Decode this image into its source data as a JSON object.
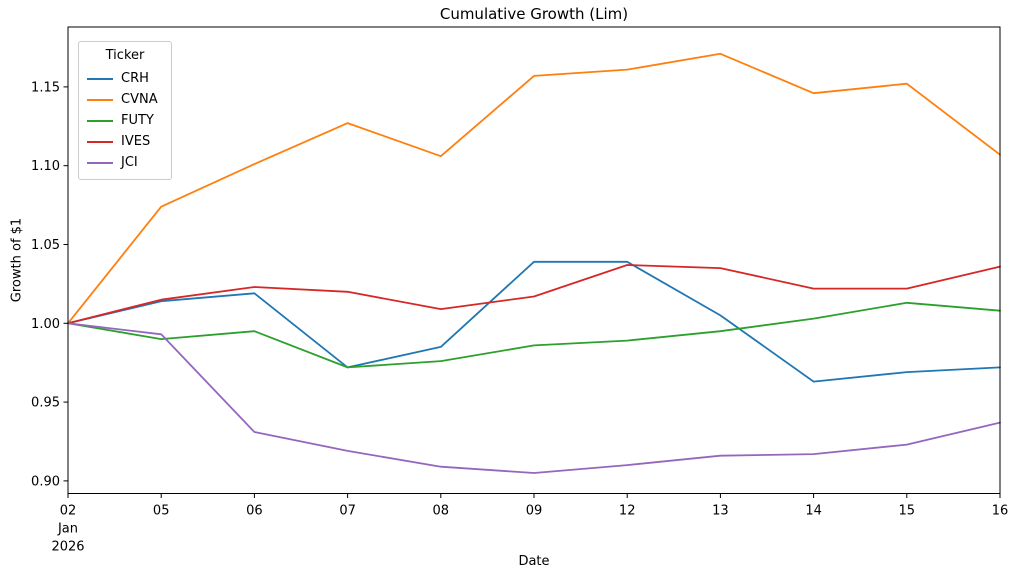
{
  "chart_data": {
    "type": "line",
    "title": "Cumulative Growth (Lim)",
    "xlabel": "Date",
    "ylabel": "Growth of $1",
    "x_dates": [
      "2026-01-02",
      "2026-01-05",
      "2026-01-06",
      "2026-01-07",
      "2026-01-08",
      "2026-01-09",
      "2026-01-12",
      "2026-01-13",
      "2026-01-14",
      "2026-01-15",
      "2026-01-16"
    ],
    "x_tick_labels": [
      "02",
      "05",
      "06",
      "07",
      "08",
      "09",
      "12",
      "13",
      "14",
      "15",
      "16"
    ],
    "x_first_tick_sublabels": [
      "Jan",
      "2026"
    ],
    "y_tick_labels": [
      "0.90",
      "0.95",
      "1.00",
      "1.05",
      "1.10",
      "1.15"
    ],
    "y_ticks": [
      0.9,
      0.95,
      1.0,
      1.05,
      1.1,
      1.15
    ],
    "ylim": [
      0.892,
      1.188
    ],
    "grid": false,
    "background_color": "#ffffff",
    "axis_color": "#000000",
    "legend": {
      "title": "Ticker",
      "position": "upper left"
    },
    "series": [
      {
        "name": "CRH",
        "color": "#1f77b4",
        "values": [
          1.0,
          1.014,
          1.019,
          0.972,
          0.985,
          1.039,
          1.039,
          1.005,
          0.963,
          0.969,
          0.972
        ]
      },
      {
        "name": "CVNA",
        "color": "#ff7f0e",
        "values": [
          1.0,
          1.074,
          1.101,
          1.127,
          1.106,
          1.157,
          1.161,
          1.171,
          1.146,
          1.152,
          1.107
        ]
      },
      {
        "name": "FUTY",
        "color": "#2ca02c",
        "values": [
          1.0,
          0.99,
          0.995,
          0.972,
          0.976,
          0.986,
          0.989,
          0.995,
          1.003,
          1.013,
          1.008
        ]
      },
      {
        "name": "IVES",
        "color": "#d62728",
        "values": [
          1.0,
          1.015,
          1.023,
          1.02,
          1.009,
          1.017,
          1.037,
          1.035,
          1.022,
          1.022,
          1.036
        ]
      },
      {
        "name": "JCI",
        "color": "#9467bd",
        "values": [
          1.0,
          0.993,
          0.931,
          0.919,
          0.909,
          0.905,
          0.91,
          0.916,
          0.917,
          0.923,
          0.937
        ]
      }
    ]
  }
}
